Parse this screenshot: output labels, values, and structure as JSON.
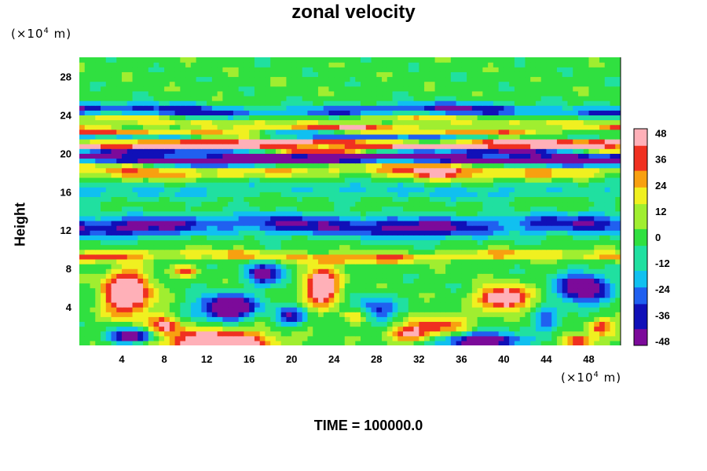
{
  "chart_data": {
    "type": "heatmap",
    "title": "zonal velocity",
    "ylabel": "Height",
    "y_unit": {
      "prefix": "(×10",
      "exp": "4",
      "suffix": " m)"
    },
    "x_unit": {
      "prefix": "(×10",
      "exp": "4",
      "suffix": " m)"
    },
    "footer": "TIME = 100000.0",
    "xlim": [
      0,
      51
    ],
    "ylim": [
      0,
      30
    ],
    "x_ticks": [
      4,
      8,
      12,
      16,
      20,
      24,
      28,
      32,
      36,
      40,
      44,
      48
    ],
    "y_ticks": [
      4,
      8,
      12,
      16,
      20,
      24,
      28
    ],
    "colorbar": {
      "range": [
        -50,
        50
      ],
      "ticks": [
        -48,
        -36,
        -24,
        -12,
        0,
        12,
        24,
        36,
        48
      ],
      "colors": [
        "#7c0a9a",
        "#1010b8",
        "#2060f0",
        "#10c0f0",
        "#20e0a0",
        "#30e040",
        "#a0ee30",
        "#f0f020",
        "#f8a010",
        "#f03020",
        "#ffb0b8"
      ]
    },
    "bands": [
      {
        "y": 29.0,
        "amp": 0,
        "thick": 2.0
      },
      {
        "y": 24.4,
        "amp": -34,
        "thick": 0.7
      },
      {
        "y": 23.6,
        "amp": 20,
        "thick": 0.6
      },
      {
        "y": 22.4,
        "amp": 32,
        "thick": 0.4
      },
      {
        "y": 21.8,
        "amp": -30,
        "thick": 0.4
      },
      {
        "y": 21.2,
        "amp": 44,
        "thick": 0.35
      },
      {
        "y": 20.6,
        "amp": 50,
        "thick": 0.3
      },
      {
        "y": 20.0,
        "amp": -38,
        "thick": 0.45
      },
      {
        "y": 19.3,
        "amp": -52,
        "thick": 0.4
      },
      {
        "y": 18.2,
        "amp": 22,
        "thick": 0.7
      },
      {
        "y": 16.2,
        "amp": -14,
        "thick": 0.9
      },
      {
        "y": 12.5,
        "amp": -38,
        "thick": 1.1
      },
      {
        "y": 9.3,
        "amp": 26,
        "thick": 0.5
      }
    ],
    "blobs": [
      {
        "x": 4.5,
        "y": 5.5,
        "rx": 2.6,
        "ry": 2.6,
        "amp": 72
      },
      {
        "x": 8.0,
        "y": 2.2,
        "rx": 1.8,
        "ry": 1.2,
        "amp": 40
      },
      {
        "x": 14.0,
        "y": 4.0,
        "rx": 3.2,
        "ry": 1.5,
        "amp": -68
      },
      {
        "x": 17.5,
        "y": 7.5,
        "rx": 2.2,
        "ry": 1.5,
        "amp": -44
      },
      {
        "x": 13.0,
        "y": 0.3,
        "rx": 6.0,
        "ry": 1.6,
        "amp": 68
      },
      {
        "x": 22.8,
        "y": 6.2,
        "rx": 1.9,
        "ry": 2.3,
        "amp": 66
      },
      {
        "x": 26.0,
        "y": 3.0,
        "rx": 1.3,
        "ry": 0.8,
        "amp": 32
      },
      {
        "x": 5.0,
        "y": 1.0,
        "rx": 2.5,
        "ry": 0.9,
        "amp": -58
      },
      {
        "x": 31.0,
        "y": 1.2,
        "rx": 2.5,
        "ry": 0.9,
        "amp": 42
      },
      {
        "x": 34.0,
        "y": 2.2,
        "rx": 3.5,
        "ry": 1.2,
        "amp": 35
      },
      {
        "x": 40.0,
        "y": 5.0,
        "rx": 2.6,
        "ry": 1.4,
        "amp": 66
      },
      {
        "x": 38.0,
        "y": 0.5,
        "rx": 4.0,
        "ry": 1.0,
        "amp": -66
      },
      {
        "x": 47.5,
        "y": 6.0,
        "rx": 2.7,
        "ry": 1.9,
        "amp": -62
      },
      {
        "x": 49.2,
        "y": 2.0,
        "rx": 1.4,
        "ry": 1.1,
        "amp": 40
      },
      {
        "x": 34.0,
        "y": 18.2,
        "rx": 3.5,
        "ry": 1.1,
        "amp": 26
      },
      {
        "x": 28.0,
        "y": 3.8,
        "rx": 2.2,
        "ry": 1.5,
        "amp": -36
      },
      {
        "x": 44.0,
        "y": 2.6,
        "rx": 1.6,
        "ry": 1.3,
        "amp": -30
      },
      {
        "x": 10.0,
        "y": 7.8,
        "rx": 1.2,
        "ry": 0.6,
        "amp": 36
      },
      {
        "x": 20.0,
        "y": 3.0,
        "rx": 1.6,
        "ry": 1.2,
        "amp": -40
      },
      {
        "x": 47.0,
        "y": 0.4,
        "rx": 1.6,
        "ry": 0.8,
        "amp": 48
      }
    ]
  }
}
